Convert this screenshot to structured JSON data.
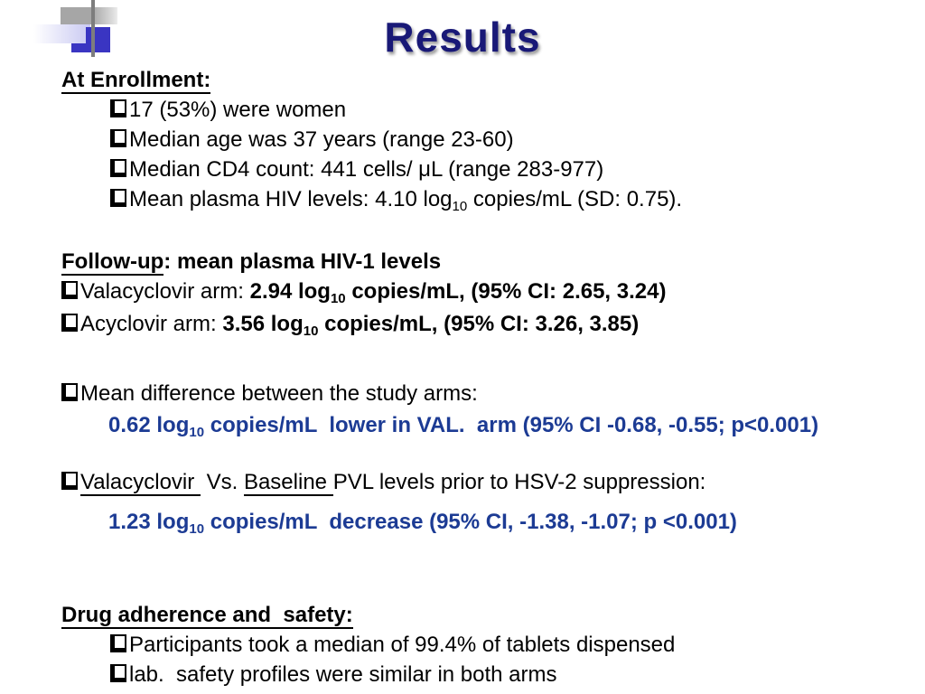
{
  "title": "Results",
  "colors": {
    "title_navy": "#191977",
    "stat_blue": "#1c3b94",
    "body_black": "#000000",
    "decoration_blue": "#3a35c2",
    "decoration_gray": "#a6a6a6",
    "decoration_lavender": "#c9c9f2"
  },
  "enrollment": {
    "heading": "At Enrollment:",
    "items": [
      "17 (53%) were women",
      "Median age was 37 years (range 23-60)",
      "Median CD4 count: 441 cells/ μL (range 283-977)"
    ],
    "item_hiv": {
      "pre": "Mean plasma HIV levels: 4.10 log",
      "sub": "10",
      "post": " copies/mL (SD: 0.75)."
    }
  },
  "followup": {
    "heading_underlined": "Follow-up",
    "heading_rest": ": mean plasma HIV-1 levels",
    "val": {
      "label": "Valacyclovir arm: ",
      "stat_pre": "2.94 log",
      "stat_sub": "10",
      "stat_post": " copies/mL, (95% CI: 2.65, 3.24)"
    },
    "acy": {
      "label": "Acyclovir arm: ",
      "stat_pre": "3.56 log",
      "stat_sub": "10",
      "stat_post": " copies/mL, (95% CI: 3.26, 3.85)"
    }
  },
  "meandiff": {
    "label": "Mean difference between the study arms:",
    "stat": {
      "pre": "0.62 log",
      "sub": "10",
      "post": " copies/mL  lower in VAL.  arm (95% CI -0.68, -0.55; p<0.001)"
    }
  },
  "comparison": {
    "seg_val": "Valacyclovir ",
    "seg_vs": " Vs. ",
    "seg_baseline": "Baseline ",
    "seg_rest": "PVL levels prior to HSV-2 suppression:",
    "stat": {
      "pre": "1.23 log",
      "sub": "10",
      "post": " copies/mL  decrease (95% CI, -1.38, -1.07; p <0.001)"
    }
  },
  "drug": {
    "heading": "Drug adherence and  safety:",
    "items": [
      "Participants took a median of 99.4% of tablets dispensed",
      "lab.  safety profiles were similar in both arms"
    ]
  }
}
